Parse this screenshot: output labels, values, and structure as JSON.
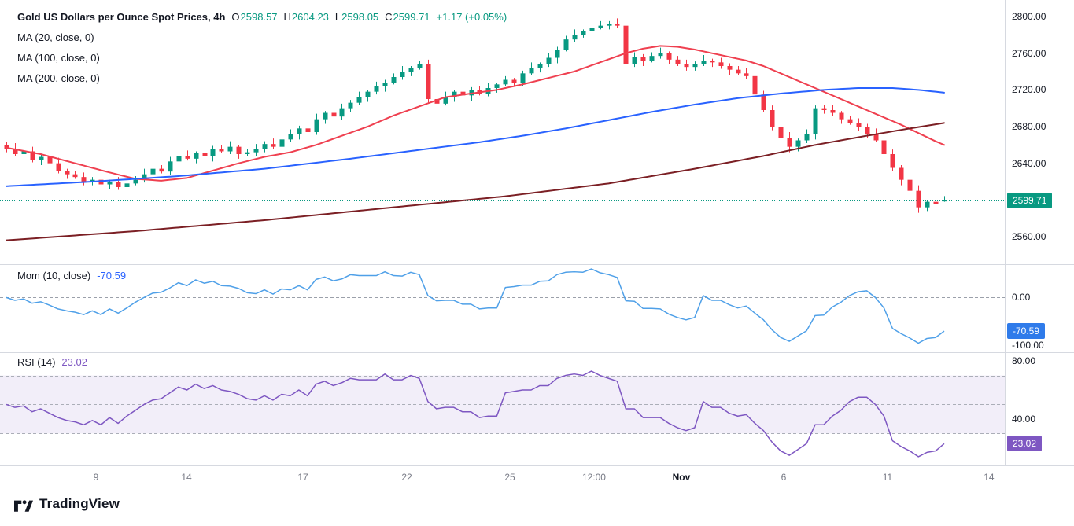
{
  "header": {
    "title": "Gold US Dollars per Ounce Spot Prices, 4h",
    "ohlc_labels": {
      "o": "O",
      "h": "H",
      "l": "L",
      "c": "C"
    },
    "ohlc": {
      "o": "2598.57",
      "h": "2604.23",
      "l": "2598.05",
      "c": "2599.71"
    },
    "change": "+1.17 (+0.05%)",
    "ma20_label": "MA (20, close, 0)",
    "ma100_label": "MA (100, close, 0)",
    "ma200_label": "MA (200, close, 0)"
  },
  "mom_legend": {
    "label": "Mom (10, close)",
    "value": "-70.59"
  },
  "rsi_legend": {
    "label": "RSI (14)",
    "value": "23.02"
  },
  "axis_badges": {
    "price": "2599.71",
    "mom": "-70.59",
    "rsi": "23.02"
  },
  "footer": {
    "logo_text": "TradingView"
  },
  "colors": {
    "up": "#089981",
    "down": "#F23645",
    "ma20": "#EF4050",
    "ma100": "#2962FF",
    "ma200": "#7B1F24",
    "mom_line": "#4FA0E8",
    "mom_badge": "#2F7BEA",
    "rsi_line": "#7E57C2",
    "rsi_badge": "#7E57C2",
    "price_badge": "#089981",
    "band_fill": "rgba(126,87,194,0.10)"
  },
  "chart_data": {
    "type": "candlestick",
    "title": "Gold US Dollars per Ounce Spot Prices, 4h",
    "timeframe": "4h",
    "ohlc_display": {
      "open": 2598.57,
      "high": 2604.23,
      "low": 2598.05,
      "close": 2599.71,
      "change": 1.17,
      "change_pct": 0.05
    },
    "candles": [
      [
        2660,
        2663,
        2652,
        2656
      ],
      [
        2656,
        2662,
        2648,
        2650
      ],
      [
        2650,
        2655,
        2645,
        2653
      ],
      [
        2653,
        2658,
        2641,
        2644
      ],
      [
        2644,
        2650,
        2638,
        2647
      ],
      [
        2647,
        2651,
        2638,
        2640
      ],
      [
        2640,
        2646,
        2629,
        2632
      ],
      [
        2632,
        2634,
        2623,
        2628
      ],
      [
        2628,
        2632,
        2623,
        2625
      ],
      [
        2625,
        2630,
        2616,
        2620
      ],
      [
        2620,
        2625,
        2616,
        2622
      ],
      [
        2622,
        2628,
        2615,
        2617
      ],
      [
        2617,
        2622,
        2612,
        2620
      ],
      [
        2620,
        2625,
        2611,
        2614
      ],
      [
        2614,
        2621,
        2608,
        2618
      ],
      [
        2618,
        2626,
        2616,
        2622
      ],
      [
        2622,
        2634,
        2619,
        2628
      ],
      [
        2628,
        2636,
        2623,
        2634
      ],
      [
        2634,
        2638,
        2629,
        2631
      ],
      [
        2631,
        2647,
        2627,
        2642
      ],
      [
        2642,
        2651,
        2638,
        2648
      ],
      [
        2648,
        2654,
        2643,
        2645
      ],
      [
        2645,
        2653,
        2640,
        2651
      ],
      [
        2651,
        2656,
        2645,
        2648
      ],
      [
        2648,
        2659,
        2642,
        2656
      ],
      [
        2656,
        2660,
        2651,
        2653
      ],
      [
        2653,
        2664,
        2650,
        2658
      ],
      [
        2658,
        2660,
        2645,
        2650
      ],
      [
        2650,
        2656,
        2648,
        2652
      ],
      [
        2652,
        2661,
        2648,
        2656
      ],
      [
        2656,
        2664,
        2652,
        2661
      ],
      [
        2661,
        2667,
        2656,
        2658
      ],
      [
        2658,
        2668,
        2653,
        2666
      ],
      [
        2666,
        2677,
        2663,
        2672
      ],
      [
        2672,
        2681,
        2666,
        2678
      ],
      [
        2678,
        2682,
        2672,
        2674
      ],
      [
        2674,
        2694,
        2671,
        2688
      ],
      [
        2688,
        2697,
        2683,
        2695
      ],
      [
        2695,
        2699,
        2689,
        2691
      ],
      [
        2691,
        2705,
        2687,
        2700
      ],
      [
        2700,
        2709,
        2696,
        2706
      ],
      [
        2706,
        2718,
        2704,
        2712
      ],
      [
        2712,
        2720,
        2707,
        2718
      ],
      [
        2718,
        2729,
        2715,
        2724
      ],
      [
        2724,
        2731,
        2718,
        2728
      ],
      [
        2728,
        2738,
        2726,
        2734
      ],
      [
        2734,
        2746,
        2731,
        2740
      ],
      [
        2740,
        2746,
        2735,
        2744
      ],
      [
        2744,
        2752,
        2742,
        2748
      ],
      [
        2748,
        2753,
        2706,
        2710
      ],
      [
        2710,
        2713,
        2701,
        2705
      ],
      [
        2705,
        2718,
        2703,
        2712
      ],
      [
        2712,
        2720,
        2707,
        2718
      ],
      [
        2718,
        2723,
        2711,
        2714
      ],
      [
        2714,
        2723,
        2708,
        2720
      ],
      [
        2720,
        2724,
        2714,
        2716
      ],
      [
        2716,
        2728,
        2713,
        2722
      ],
      [
        2722,
        2728,
        2717,
        2726
      ],
      [
        2726,
        2735,
        2724,
        2731
      ],
      [
        2731,
        2733,
        2724,
        2728
      ],
      [
        2728,
        2741,
        2724,
        2738
      ],
      [
        2738,
        2750,
        2736,
        2744
      ],
      [
        2744,
        2750,
        2739,
        2748
      ],
      [
        2748,
        2760,
        2745,
        2755
      ],
      [
        2755,
        2767,
        2749,
        2764
      ],
      [
        2764,
        2779,
        2762,
        2775
      ],
      [
        2775,
        2786,
        2772,
        2780
      ],
      [
        2780,
        2786,
        2777,
        2784
      ],
      [
        2784,
        2792,
        2782,
        2788
      ],
      [
        2788,
        2795,
        2786,
        2790
      ],
      [
        2790,
        2795,
        2786,
        2792
      ],
      [
        2792,
        2798,
        2788,
        2790
      ],
      [
        2790,
        2792,
        2743,
        2748
      ],
      [
        2748,
        2761,
        2745,
        2756
      ],
      [
        2756,
        2759,
        2746,
        2752
      ],
      [
        2752,
        2761,
        2750,
        2757
      ],
      [
        2757,
        2766,
        2754,
        2760
      ],
      [
        2760,
        2762,
        2748,
        2753
      ],
      [
        2753,
        2757,
        2746,
        2748
      ],
      [
        2748,
        2753,
        2741,
        2745
      ],
      [
        2745,
        2751,
        2741,
        2748
      ],
      [
        2748,
        2758,
        2746,
        2752
      ],
      [
        2752,
        2754,
        2745,
        2750
      ],
      [
        2750,
        2755,
        2743,
        2746
      ],
      [
        2746,
        2749,
        2736,
        2742
      ],
      [
        2742,
        2746,
        2736,
        2738
      ],
      [
        2738,
        2744,
        2732,
        2735
      ],
      [
        2735,
        2737,
        2710,
        2715
      ],
      [
        2715,
        2719,
        2696,
        2698
      ],
      [
        2698,
        2703,
        2676,
        2680
      ],
      [
        2680,
        2683,
        2662,
        2668
      ],
      [
        2668,
        2674,
        2652,
        2658
      ],
      [
        2658,
        2667,
        2653,
        2665
      ],
      [
        2665,
        2677,
        2662,
        2672
      ],
      [
        2672,
        2703,
        2666,
        2700
      ],
      [
        2700,
        2704,
        2694,
        2698
      ],
      [
        2698,
        2704,
        2692,
        2695
      ],
      [
        2695,
        2697,
        2683,
        2688
      ],
      [
        2688,
        2692,
        2682,
        2684
      ],
      [
        2684,
        2689,
        2675,
        2680
      ],
      [
        2680,
        2683,
        2668,
        2672
      ],
      [
        2672,
        2678,
        2663,
        2665
      ],
      [
        2665,
        2667,
        2645,
        2650
      ],
      [
        2650,
        2655,
        2632,
        2635
      ],
      [
        2635,
        2638,
        2616,
        2622
      ],
      [
        2622,
        2626,
        2608,
        2610
      ],
      [
        2610,
        2616,
        2586,
        2592
      ],
      [
        2592,
        2600,
        2588,
        2598
      ],
      [
        2598,
        2602,
        2592,
        2596
      ],
      [
        2598.57,
        2604.23,
        2598.05,
        2599.71
      ]
    ],
    "overlays": [
      {
        "name": "MA (20, close, 0)",
        "color": "#EF4050",
        "points": [
          [
            0,
            2657
          ],
          [
            4,
            2650
          ],
          [
            8,
            2640
          ],
          [
            12,
            2630
          ],
          [
            15,
            2623
          ],
          [
            18,
            2621
          ],
          [
            21,
            2624
          ],
          [
            24,
            2632
          ],
          [
            27,
            2640
          ],
          [
            30,
            2647
          ],
          [
            33,
            2652
          ],
          [
            36,
            2660
          ],
          [
            39,
            2670
          ],
          [
            42,
            2680
          ],
          [
            45,
            2692
          ],
          [
            48,
            2702
          ],
          [
            51,
            2712
          ],
          [
            54,
            2716
          ],
          [
            57,
            2720
          ],
          [
            60,
            2726
          ],
          [
            63,
            2733
          ],
          [
            66,
            2740
          ],
          [
            69,
            2750
          ],
          [
            72,
            2760
          ],
          [
            74,
            2765
          ],
          [
            76,
            2768
          ],
          [
            78,
            2767
          ],
          [
            80,
            2764
          ],
          [
            82,
            2760
          ],
          [
            84,
            2756
          ],
          [
            86,
            2752
          ],
          [
            88,
            2746
          ],
          [
            90,
            2738
          ],
          [
            92,
            2730
          ],
          [
            94,
            2722
          ],
          [
            96,
            2714
          ],
          [
            98,
            2706
          ],
          [
            100,
            2698
          ],
          [
            102,
            2690
          ],
          [
            104,
            2682
          ],
          [
            106,
            2673
          ],
          [
            108,
            2664
          ],
          [
            109,
            2660
          ]
        ]
      },
      {
        "name": "MA (100, close, 0)",
        "color": "#2962FF",
        "points": [
          [
            0,
            2615
          ],
          [
            10,
            2620
          ],
          [
            20,
            2626
          ],
          [
            30,
            2634
          ],
          [
            40,
            2645
          ],
          [
            50,
            2657
          ],
          [
            55,
            2663
          ],
          [
            60,
            2670
          ],
          [
            65,
            2678
          ],
          [
            70,
            2687
          ],
          [
            75,
            2696
          ],
          [
            80,
            2704
          ],
          [
            85,
            2711
          ],
          [
            90,
            2716
          ],
          [
            95,
            2720
          ],
          [
            99,
            2722
          ],
          [
            103,
            2722
          ],
          [
            106,
            2720
          ],
          [
            109,
            2717
          ]
        ]
      },
      {
        "name": "MA (200, close, 0)",
        "color": "#7B1F24",
        "points": [
          [
            0,
            2556
          ],
          [
            15,
            2566
          ],
          [
            30,
            2578
          ],
          [
            45,
            2592
          ],
          [
            58,
            2604
          ],
          [
            70,
            2618
          ],
          [
            80,
            2634
          ],
          [
            88,
            2648
          ],
          [
            94,
            2660
          ],
          [
            100,
            2670
          ],
          [
            105,
            2678
          ],
          [
            109,
            2684
          ]
        ]
      }
    ],
    "price_axis": {
      "range": [
        2530,
        2818
      ],
      "ticks": [
        2800,
        2760,
        2720,
        2680,
        2640,
        2560
      ],
      "tick_labels": [
        "2800.00",
        "2760.00",
        "2720.00",
        "2680.00",
        "2640.00",
        "2560.00"
      ],
      "last_price": 2599.71
    },
    "momentum": {
      "name": "Mom (10, close)",
      "value": -70.59,
      "range": [
        -115,
        70
      ],
      "ticks": [
        0,
        -100
      ],
      "tick_labels": [
        "0.00",
        "-100.00"
      ],
      "values": [
        0,
        -6,
        -3,
        -12,
        -9,
        -16,
        -24,
        -28,
        -31,
        -36,
        -28,
        -36,
        -24,
        -33,
        -22,
        -10,
        0,
        9,
        11,
        20,
        31,
        25,
        37,
        30,
        34,
        25,
        24,
        19,
        10,
        8,
        16,
        7,
        18,
        16,
        25,
        16,
        38,
        43,
        35,
        39,
        48,
        46,
        46,
        46,
        54,
        46,
        45,
        53,
        48,
        4,
        -7,
        -6,
        -6,
        -14,
        -14,
        -24,
        -22,
        -22,
        21,
        23,
        26,
        26,
        34,
        35,
        48,
        53,
        54,
        53,
        60,
        52,
        48,
        42,
        -7,
        -8,
        -23,
        -23,
        -24,
        -35,
        -42,
        -47,
        -42,
        4,
        -6,
        -6,
        -15,
        -22,
        -18,
        -33,
        -47,
        -68,
        -84,
        -92,
        -81,
        -70,
        -38,
        -37,
        -20,
        -10,
        4,
        12,
        14,
        0,
        -22,
        -65,
        -76,
        -85,
        -96,
        -86,
        -84,
        -70.59
      ]
    },
    "rsi": {
      "name": "RSI (14)",
      "value": 23.02,
      "range": [
        8,
        86
      ],
      "ticks": [
        80,
        40
      ],
      "tick_labels": [
        "80.00",
        "40.00"
      ],
      "band": [
        30,
        70
      ],
      "band_lines": [
        70,
        50,
        30
      ],
      "values": [
        50,
        48,
        49,
        45,
        47,
        44,
        41,
        39,
        38,
        36,
        39,
        36,
        41,
        37,
        42,
        46,
        50,
        53,
        54,
        58,
        62,
        60,
        64,
        61,
        63,
        60,
        59,
        57,
        54,
        53,
        56,
        53,
        57,
        56,
        60,
        56,
        64,
        66,
        63,
        65,
        68,
        67,
        67,
        67,
        71,
        67,
        67,
        70,
        68,
        52,
        47,
        48,
        48,
        45,
        45,
        41,
        42,
        42,
        58,
        59,
        60,
        60,
        63,
        63,
        68,
        70,
        71,
        70,
        73,
        70,
        68,
        66,
        47,
        47,
        41,
        41,
        41,
        37,
        34,
        32,
        34,
        52,
        48,
        48,
        44,
        42,
        43,
        37,
        32,
        24,
        18,
        15,
        19,
        23,
        36,
        36,
        42,
        46,
        52,
        55,
        55,
        50,
        42,
        25,
        21,
        18,
        14,
        17,
        18,
        23.02
      ]
    },
    "time_axis": {
      "labels": [
        {
          "text": "9",
          "pos": 0.0955
        },
        {
          "text": "14",
          "pos": 0.1856
        },
        {
          "text": "17",
          "pos": 0.3015
        },
        {
          "text": "22",
          "pos": 0.4049
        },
        {
          "text": "25",
          "pos": 0.5075
        },
        {
          "text": "12:00",
          "pos": 0.5912
        },
        {
          "text": "Nov",
          "pos": 0.6781,
          "emphasis": true
        },
        {
          "text": "6",
          "pos": 0.7799
        },
        {
          "text": "11",
          "pos": 0.8833
        },
        {
          "text": "14",
          "pos": 0.9843
        }
      ]
    }
  }
}
